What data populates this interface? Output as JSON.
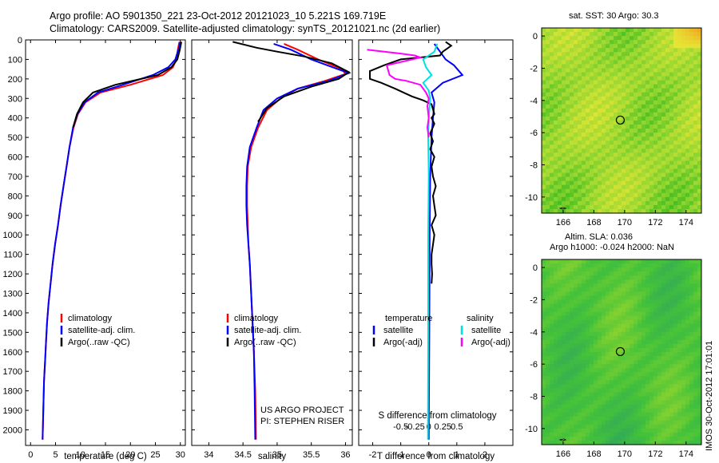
{
  "titles": {
    "line1": "Argo profile: AO 5901350_221 23-Oct-2012 20121023_10 5.221S 169.719E",
    "line2": "Climatology: CARS2009. Satellite-adjusted climatology: synTS_20121021.nc (2d earlier)"
  },
  "maps": {
    "sst_title": "sat. SST: 30 Argo: 30.3",
    "sla_line1": "Altim. SLA: 0.036",
    "sla_line2": "Argo h1000: -0.024 h2000: NaN",
    "lon_ticks": [
      "166",
      "168",
      "170",
      "172",
      "174"
    ],
    "lat_ticks": [
      "0",
      "-2",
      "-4",
      "-6",
      "-8",
      "-10"
    ],
    "lon_range": [
      164.6,
      175.0
    ],
    "lat_range": [
      -11.0,
      0.5
    ],
    "argo_lon": 169.719,
    "argo_lat": -5.221,
    "sst_colors": {
      "low": "#33b81c",
      "mid": "#9ad832",
      "high": "#e6e635",
      "warm": "#f0a020"
    },
    "sla_colors": {
      "low": "#2fa85a",
      "mid": "#44c23a",
      "high": "#8fd42e"
    }
  },
  "credits": {
    "line1": "US ARGO PROJECT",
    "line2": "PI: STEPHEN RISER"
  },
  "timestamp": "IMOS 30-Oct-2012 17:01:01",
  "chart_data": [
    {
      "type": "line",
      "panel": "temperature",
      "xlabel": "temperature (deg C)",
      "ylabel": "",
      "xlim": [
        -1,
        31
      ],
      "ylim": [
        2080,
        0
      ],
      "xticks": [
        0,
        5,
        10,
        15,
        20,
        25,
        30
      ],
      "yticks": [
        0,
        100,
        200,
        300,
        400,
        500,
        600,
        700,
        800,
        900,
        1000,
        1100,
        1200,
        1300,
        1400,
        1500,
        1600,
        1700,
        1800,
        1900,
        2000
      ],
      "legend": [
        "climatology",
        "satellite-adj. clim.",
        "Argo(..raw -QC)"
      ],
      "series": [
        {
          "name": "climatology",
          "color": "#ff0000",
          "points": [
            [
              29.8,
              10
            ],
            [
              29.5,
              50
            ],
            [
              29.2,
              100
            ],
            [
              28.5,
              140
            ],
            [
              26.5,
              180
            ],
            [
              20,
              230
            ],
            [
              14,
              270
            ],
            [
              11,
              320
            ],
            [
              9.5,
              380
            ],
            [
              8.6,
              450
            ],
            [
              7.8,
              550
            ],
            [
              7.2,
              650
            ],
            [
              6.6,
              750
            ],
            [
              6.0,
              850
            ],
            [
              5.5,
              950
            ],
            [
              4.9,
              1050
            ],
            [
              4.4,
              1150
            ],
            [
              4.0,
              1250
            ],
            [
              3.6,
              1350
            ],
            [
              3.3,
              1450
            ],
            [
              3.1,
              1550
            ],
            [
              2.9,
              1650
            ],
            [
              2.7,
              1750
            ],
            [
              2.6,
              1850
            ],
            [
              2.5,
              1950
            ],
            [
              2.4,
              2050
            ]
          ]
        },
        {
          "name": "satellite-adj. clim.",
          "color": "#0000ff",
          "points": [
            [
              30.0,
              10
            ],
            [
              29.6,
              50
            ],
            [
              29.0,
              100
            ],
            [
              27.6,
              140
            ],
            [
              24.5,
              180
            ],
            [
              18.5,
              230
            ],
            [
              13.5,
              270
            ],
            [
              10.8,
              320
            ],
            [
              9.4,
              380
            ],
            [
              8.5,
              450
            ],
            [
              7.8,
              550
            ],
            [
              7.2,
              650
            ],
            [
              6.6,
              750
            ],
            [
              6.0,
              850
            ],
            [
              5.5,
              950
            ],
            [
              4.9,
              1050
            ],
            [
              4.4,
              1150
            ],
            [
              4.0,
              1250
            ],
            [
              3.6,
              1350
            ],
            [
              3.3,
              1450
            ],
            [
              3.1,
              1550
            ],
            [
              2.9,
              1650
            ],
            [
              2.7,
              1750
            ],
            [
              2.6,
              1850
            ],
            [
              2.5,
              1950
            ],
            [
              2.4,
              2050
            ]
          ]
        },
        {
          "name": "Argo(..raw -QC)",
          "color": "#000000",
          "points": [
            [
              30.2,
              10
            ],
            [
              29.9,
              50
            ],
            [
              29.4,
              100
            ],
            [
              28.2,
              140
            ],
            [
              25.5,
              180
            ],
            [
              17,
              230
            ],
            [
              12.5,
              270
            ],
            [
              10.5,
              320
            ],
            [
              9.3,
              380
            ],
            [
              8.5,
              450
            ]
          ]
        }
      ]
    },
    {
      "type": "line",
      "panel": "salinity",
      "xlabel": "salinity",
      "ylabel": "",
      "xlim": [
        33.75,
        36.1
      ],
      "ylim": [
        2080,
        0
      ],
      "xticks": [
        34,
        34.5,
        35,
        35.5,
        36
      ],
      "xtick_labels": [
        "34",
        "34.5",
        "35",
        "35.5",
        "36"
      ],
      "legend": [
        "climatology",
        "satellite-adj. clim.",
        "Argo(..raw -QC)"
      ],
      "series": [
        {
          "name": "climatology",
          "color": "#ff0000",
          "points": [
            [
              35.1,
              20
            ],
            [
              35.3,
              50
            ],
            [
              35.6,
              100
            ],
            [
              35.95,
              150
            ],
            [
              36.0,
              175
            ],
            [
              35.7,
              210
            ],
            [
              35.3,
              250
            ],
            [
              35.05,
              300
            ],
            [
              34.85,
              360
            ],
            [
              34.72,
              450
            ],
            [
              34.62,
              550
            ],
            [
              34.57,
              650
            ],
            [
              34.56,
              750
            ],
            [
              34.56,
              850
            ],
            [
              34.57,
              950
            ],
            [
              34.58,
              1050
            ],
            [
              34.6,
              1150
            ],
            [
              34.62,
              1300
            ],
            [
              34.64,
              1450
            ],
            [
              34.66,
              1600
            ],
            [
              34.68,
              1800
            ],
            [
              34.69,
              2050
            ]
          ]
        },
        {
          "name": "satellite-adj. clim.",
          "color": "#0000ff",
          "points": [
            [
              34.95,
              20
            ],
            [
              35.2,
              50
            ],
            [
              35.5,
              100
            ],
            [
              35.85,
              145
            ],
            [
              36.05,
              170
            ],
            [
              35.75,
              210
            ],
            [
              35.3,
              250
            ],
            [
              35.0,
              300
            ],
            [
              34.8,
              360
            ],
            [
              34.7,
              450
            ],
            [
              34.6,
              550
            ],
            [
              34.56,
              650
            ],
            [
              34.55,
              750
            ],
            [
              34.55,
              850
            ],
            [
              34.56,
              950
            ],
            [
              34.58,
              1050
            ],
            [
              34.6,
              1150
            ],
            [
              34.62,
              1300
            ],
            [
              34.64,
              1450
            ],
            [
              34.66,
              1600
            ],
            [
              34.67,
              1800
            ],
            [
              34.68,
              2050
            ]
          ]
        },
        {
          "name": "Argo(..raw -QC)",
          "color": "#000000",
          "points": [
            [
              34.35,
              10
            ],
            [
              34.7,
              40
            ],
            [
              35.0,
              60
            ],
            [
              35.4,
              85
            ],
            [
              35.8,
              120
            ],
            [
              36.05,
              165
            ],
            [
              35.9,
              200
            ],
            [
              35.5,
              240
            ],
            [
              35.1,
              290
            ],
            [
              34.85,
              350
            ],
            [
              34.72,
              420
            ]
          ]
        }
      ]
    },
    {
      "type": "line",
      "panel": "difference",
      "xlabel": "T difference from climatology",
      "x2label": "S difference from climatology",
      "ylabel": "",
      "xlim": [
        -2.5,
        3
      ],
      "ylim": [
        2080,
        0
      ],
      "xticks": [
        -2,
        -1,
        0,
        1,
        2
      ],
      "x2ticks": [
        -0.5,
        -0.25,
        0,
        0.25,
        0.5
      ],
      "x2tick_labels": [
        "-0.5",
        "-0.25",
        "0",
        "0.25",
        "0.5"
      ],
      "legend": [
        {
          "group": "temperature",
          "items": [
            "satellite",
            "Argo(-adj)"
          ]
        },
        {
          "group": "salinity",
          "items": [
            "satellite",
            "Argo(-adj)"
          ]
        }
      ],
      "series": [
        {
          "name": "satellite",
          "group": "temperature",
          "color": "#0000ff",
          "points": [
            [
              0.2,
              20
            ],
            [
              0.4,
              60
            ],
            [
              0.6,
              100
            ],
            [
              0.9,
              130
            ],
            [
              1.2,
              180
            ],
            [
              0.5,
              220
            ],
            [
              0.1,
              270
            ],
            [
              0.2,
              320
            ],
            [
              0.15,
              400
            ],
            [
              0.1,
              500
            ],
            [
              0.05,
              700
            ],
            [
              0.03,
              1000
            ],
            [
              0.02,
              1500
            ],
            [
              0.0,
              2050
            ]
          ]
        },
        {
          "name": "Argo(-adj)",
          "group": "temperature",
          "color": "#000000",
          "points": [
            [
              0.6,
              10
            ],
            [
              0.8,
              30
            ],
            [
              0.5,
              60
            ],
            [
              0.4,
              80
            ],
            [
              -1.0,
              100
            ],
            [
              -1.6,
              130
            ],
            [
              -2.1,
              160
            ],
            [
              -2.1,
              200
            ],
            [
              -1.7,
              220
            ],
            [
              -1.2,
              250
            ],
            [
              -0.6,
              290
            ],
            [
              -0.2,
              310
            ],
            [
              0.1,
              330
            ],
            [
              0.2,
              380
            ],
            [
              0.1,
              400
            ],
            [
              0.2,
              430
            ],
            [
              0.05,
              480
            ],
            [
              0.15,
              520
            ],
            [
              0.05,
              560
            ],
            [
              0.2,
              600
            ],
            [
              0.1,
              650
            ],
            [
              0.15,
              700
            ],
            [
              0.25,
              750
            ],
            [
              0.15,
              800
            ],
            [
              0.2,
              850
            ],
            [
              0.25,
              900
            ],
            [
              0.1,
              950
            ],
            [
              0.2,
              1000
            ],
            [
              0.15,
              1050
            ],
            [
              0.1,
              1100
            ],
            [
              0.1,
              1150
            ],
            [
              0.12,
              1200
            ],
            [
              0.1,
              1250
            ]
          ]
        },
        {
          "name": "satellite",
          "group": "salinity",
          "color": "#00e0e0",
          "points": [
            [
              0.3,
              20
            ],
            [
              0.2,
              60
            ],
            [
              -0.2,
              100
            ],
            [
              -0.1,
              140
            ],
            [
              0.1,
              180
            ],
            [
              -0.2,
              220
            ],
            [
              0.0,
              260
            ],
            [
              0.05,
              300
            ],
            [
              0.0,
              400
            ],
            [
              -0.02,
              500
            ],
            [
              0.0,
              700
            ],
            [
              -0.02,
              1000
            ],
            [
              -0.02,
              1500
            ],
            [
              -0.03,
              2050
            ]
          ]
        },
        {
          "name": "Argo(-adj)",
          "group": "salinity",
          "color": "#ff00ff",
          "points": [
            [
              -2.2,
              50
            ],
            [
              -1.0,
              70
            ],
            [
              -0.5,
              80
            ],
            [
              -0.3,
              90
            ],
            [
              -0.9,
              110
            ],
            [
              -1.5,
              130
            ],
            [
              -1.4,
              180
            ],
            [
              -1.2,
              200
            ],
            [
              -0.8,
              210
            ],
            [
              -0.3,
              230
            ],
            [
              -0.1,
              270
            ],
            [
              0.0,
              300
            ],
            [
              -0.05,
              340
            ],
            [
              0.0,
              400
            ],
            [
              -0.05,
              450
            ],
            [
              0.0,
              500
            ]
          ]
        }
      ]
    }
  ]
}
